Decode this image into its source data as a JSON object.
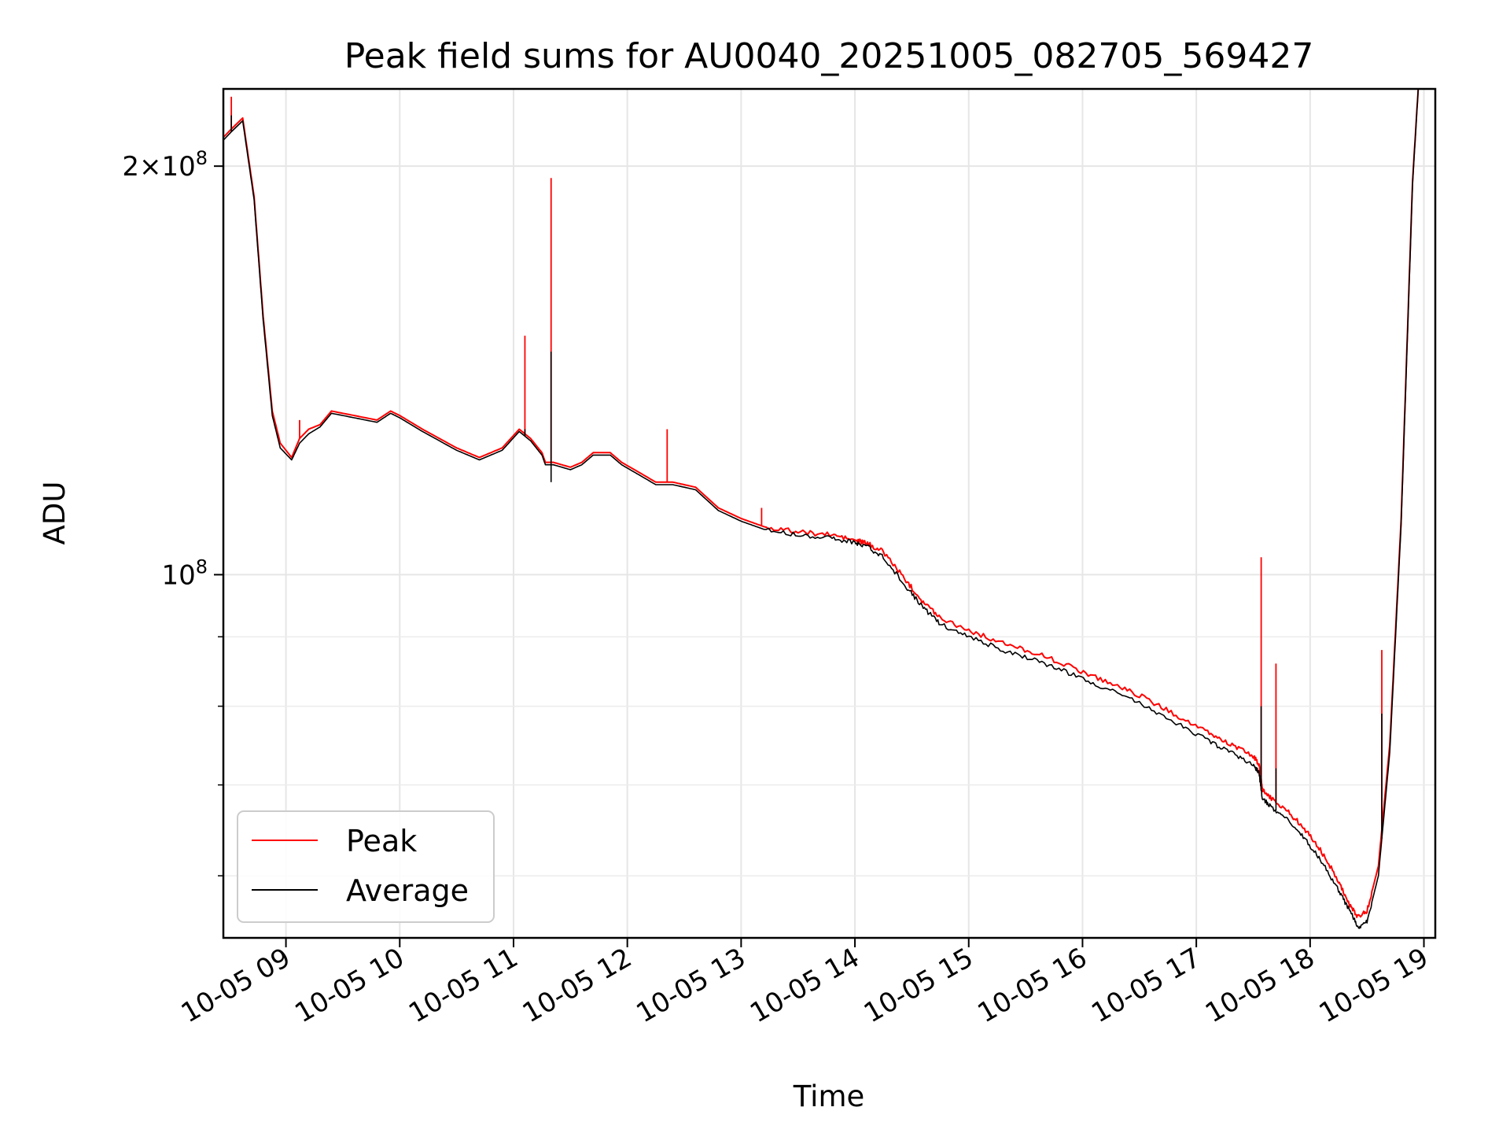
{
  "chart_data": {
    "type": "line",
    "title": "Peak field sums for AU0040_20251005_082705_569427",
    "xlabel": "Time",
    "ylabel": "ADU",
    "yscale": "log",
    "grid": true,
    "legend_position": "lower-left",
    "xlim": [
      8.45,
      19.1
    ],
    "ylim": [
      54000000,
      228000000
    ],
    "x_ticks": [
      {
        "value": 9,
        "label": "10-05 09"
      },
      {
        "value": 10,
        "label": "10-05 10"
      },
      {
        "value": 11,
        "label": "10-05 11"
      },
      {
        "value": 12,
        "label": "10-05 12"
      },
      {
        "value": 13,
        "label": "10-05 13"
      },
      {
        "value": 14,
        "label": "10-05 14"
      },
      {
        "value": 15,
        "label": "10-05 15"
      },
      {
        "value": 16,
        "label": "10-05 16"
      },
      {
        "value": 17,
        "label": "10-05 17"
      },
      {
        "value": 18,
        "label": "10-05 18"
      },
      {
        "value": 19,
        "label": "10-05 19"
      }
    ],
    "y_major_ticks": [
      {
        "value": 100000000,
        "base": "10",
        "exp": "8",
        "coef": ""
      },
      {
        "value": 200000000,
        "base": "10",
        "exp": "8",
        "coef": "2×"
      }
    ],
    "y_minor_ticks": [
      60000000,
      70000000,
      80000000,
      90000000
    ],
    "series": [
      {
        "name": "Peak",
        "color": "#ff0000",
        "x": [
          8.45,
          8.52,
          8.62,
          8.72,
          8.8,
          8.88,
          8.95,
          9.05,
          9.12,
          9.2,
          9.3,
          9.4,
          9.6,
          9.8,
          9.92,
          10.0,
          10.2,
          10.5,
          10.7,
          10.9,
          11.05,
          11.15,
          11.25,
          11.28,
          11.35,
          11.5,
          11.6,
          11.7,
          11.85,
          11.95,
          12.1,
          12.25,
          12.4,
          12.6,
          12.8,
          13.0,
          13.2,
          13.5,
          13.8,
          14.0,
          14.1,
          14.25,
          14.45,
          14.6,
          14.75,
          15.0,
          15.3,
          15.6,
          15.9,
          16.2,
          16.5,
          16.8,
          17.1,
          17.3,
          17.5,
          17.55,
          17.58,
          17.65,
          17.8,
          17.95,
          18.1,
          18.25,
          18.35,
          18.42,
          18.5,
          18.6,
          18.7,
          18.8,
          18.9,
          18.95
        ],
        "y": [
          210000000,
          213000000,
          217000000,
          190000000,
          155000000,
          132000000,
          125000000,
          122000000,
          126000000,
          128000000,
          129000000,
          132000000,
          131000000,
          130000000,
          132000000,
          131000000,
          128000000,
          124000000,
          122000000,
          124000000,
          128000000,
          126000000,
          123000000,
          121000000,
          121000000,
          120000000,
          121000000,
          123000000,
          123000000,
          121000000,
          119000000,
          117000000,
          117000000,
          116000000,
          112000000,
          110000000,
          108500000,
          107500000,
          107000000,
          106000000,
          105500000,
          104000000,
          99000000,
          95500000,
          93000000,
          91000000,
          89000000,
          87500000,
          85500000,
          83500000,
          81500000,
          79000000,
          76500000,
          75000000,
          73500000,
          72500000,
          69500000,
          68500000,
          67000000,
          65000000,
          62500000,
          59500000,
          57000000,
          56000000,
          56500000,
          61000000,
          75000000,
          110000000,
          195000000,
          228000000
        ],
        "spikes": [
          {
            "x": 8.52,
            "y": 225000000
          },
          {
            "x": 9.12,
            "y": 130000000
          },
          {
            "x": 11.1,
            "y": 150000000
          },
          {
            "x": 11.33,
            "y": 196000000
          },
          {
            "x": 12.35,
            "y": 128000000
          },
          {
            "x": 13.18,
            "y": 112000000
          },
          {
            "x": 17.57,
            "y": 103000000
          },
          {
            "x": 17.7,
            "y": 86000000
          },
          {
            "x": 18.63,
            "y": 88000000
          }
        ]
      },
      {
        "name": "Average",
        "color": "#000000",
        "x": [
          8.45,
          8.52,
          8.62,
          8.72,
          8.8,
          8.88,
          8.95,
          9.05,
          9.12,
          9.2,
          9.3,
          9.4,
          9.6,
          9.8,
          9.92,
          10.0,
          10.2,
          10.5,
          10.7,
          10.9,
          11.05,
          11.15,
          11.25,
          11.28,
          11.35,
          11.5,
          11.6,
          11.7,
          11.85,
          11.95,
          12.1,
          12.25,
          12.4,
          12.6,
          12.8,
          13.0,
          13.2,
          13.5,
          13.8,
          14.0,
          14.1,
          14.25,
          14.45,
          14.6,
          14.75,
          15.0,
          15.3,
          15.6,
          15.9,
          16.2,
          16.5,
          16.8,
          17.1,
          17.3,
          17.5,
          17.55,
          17.58,
          17.65,
          17.8,
          17.95,
          18.1,
          18.25,
          18.35,
          18.42,
          18.5,
          18.6,
          18.7,
          18.8,
          18.9,
          18.95
        ],
        "y": [
          209000000,
          212000000,
          216000000,
          189000000,
          154000000,
          131000000,
          124000000,
          121500000,
          125000000,
          127000000,
          128500000,
          131500000,
          130500000,
          129500000,
          131500000,
          130500000,
          127500000,
          123500000,
          121500000,
          123500000,
          127500000,
          125500000,
          122500000,
          120500000,
          120500000,
          119500000,
          120500000,
          122500000,
          122500000,
          120500000,
          118500000,
          116500000,
          116500000,
          115500000,
          111500000,
          109500000,
          108000000,
          107000000,
          106500000,
          105500000,
          105000000,
          103000000,
          98000000,
          94500000,
          92000000,
          90000000,
          88000000,
          86500000,
          84500000,
          82500000,
          80500000,
          78000000,
          75500000,
          74000000,
          72500000,
          71500000,
          68500000,
          67500000,
          66000000,
          64000000,
          61500000,
          58500000,
          56500000,
          55000000,
          55500000,
          60000000,
          74000000,
          109000000,
          194000000,
          228000000
        ],
        "spikes": [
          {
            "x": 8.52,
            "y": 218000000
          },
          {
            "x": 11.1,
            "y": 128000000
          },
          {
            "x": 11.33,
            "y": 146000000
          },
          {
            "x": 11.33,
            "y": 117000000
          },
          {
            "x": 17.57,
            "y": 80000000
          },
          {
            "x": 17.7,
            "y": 72000000
          },
          {
            "x": 18.63,
            "y": 79000000
          }
        ]
      }
    ]
  }
}
